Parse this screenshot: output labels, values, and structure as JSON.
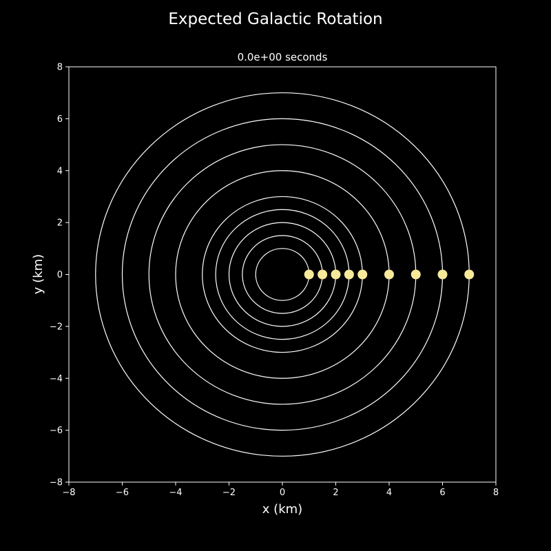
{
  "chart_data": {
    "type": "scatter",
    "title": "Expected Galactic Rotation",
    "subtitle": "0.0e+00 seconds",
    "xlabel": "x (km)",
    "ylabel": "y (km)",
    "xlim": [
      -8,
      8
    ],
    "ylim": [
      -8,
      8
    ],
    "xticks": [
      -8,
      -6,
      -4,
      -2,
      0,
      2,
      4,
      6,
      8
    ],
    "yticks": [
      -8,
      -6,
      -4,
      -2,
      0,
      2,
      4,
      6,
      8
    ],
    "grid": false,
    "orbit_radii": [
      1,
      1.5,
      2,
      2.5,
      3,
      4,
      5,
      6,
      7
    ],
    "points": [
      {
        "x": 1,
        "y": 0
      },
      {
        "x": 1.5,
        "y": 0
      },
      {
        "x": 2,
        "y": 0
      },
      {
        "x": 2.5,
        "y": 0
      },
      {
        "x": 3,
        "y": 0
      },
      {
        "x": 4,
        "y": 0
      },
      {
        "x": 5,
        "y": 0
      },
      {
        "x": 6,
        "y": 0
      },
      {
        "x": 7,
        "y": 0
      }
    ],
    "colors": {
      "background": "#000000",
      "orbit": "#ffffff",
      "point": "#f7e99a",
      "text": "#ffffff"
    }
  }
}
